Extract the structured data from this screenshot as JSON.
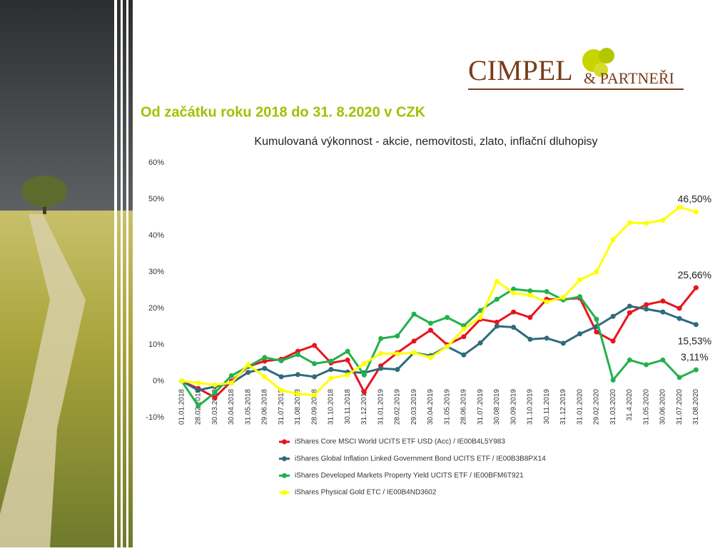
{
  "logo": {
    "name": "CIMPEL",
    "suffix": "& PARTNEŘI"
  },
  "heading": "Od začátku roku 2018 do 31. 8.2020 v CZK",
  "chart_data": {
    "type": "line",
    "title": "Kumulovaná výkonnost - akcie, nemovitosti, zlato, inflační dluhopisy",
    "categories": [
      "01.01.2018",
      "28.02.2018",
      "30.03.2018",
      "30.04.2018",
      "31.05.2018",
      "29.06.2018",
      "31.07.2018",
      "31.08.2018",
      "28.09.2018",
      "31.10.2018",
      "30.11.2018",
      "31.12.2018",
      "31.01.2019",
      "28.02.2019",
      "29.03.2019",
      "30.04.2019",
      "31.05.2019",
      "28.06.2019",
      "31.07.2019",
      "30.08.2019",
      "30.09.2019",
      "31.10.2019",
      "30.11.2019",
      "31.12.2019",
      "31.01.2020",
      "29.02.2020",
      "31.03.2020",
      "31.4.2020",
      "31.05.2020",
      "30.06.2020",
      "31.07.2020",
      "31.08.2020"
    ],
    "ylim": [
      -10,
      60
    ],
    "yticks": [
      {
        "value": -10,
        "label": "-10%"
      },
      {
        "value": 0,
        "label": "0%"
      },
      {
        "value": 10,
        "label": "10%"
      },
      {
        "value": 20,
        "label": "20%"
      },
      {
        "value": 30,
        "label": "30%"
      },
      {
        "value": 40,
        "label": "40%"
      },
      {
        "value": 50,
        "label": "50%"
      },
      {
        "value": 60,
        "label": "60%"
      }
    ],
    "grid": false,
    "series": [
      {
        "name": "iShares Core MSCI World UCITS ETF USD (Acc) / IE00B4L5Y983",
        "color": "#e8141c",
        "values": [
          0,
          -2,
          -4.5,
          0,
          4,
          5.5,
          6,
          8.2,
          9.8,
          5,
          5.8,
          -3,
          4.2,
          7.8,
          11,
          14,
          10,
          12.2,
          17,
          16.2,
          19,
          17.5,
          22.5,
          22.5,
          22.8,
          13.5,
          11,
          18.8,
          21,
          22,
          20,
          25.66
        ],
        "value_labels": [
          null,
          null,
          null,
          null,
          null,
          null,
          null,
          null,
          null,
          null,
          null,
          null,
          null,
          null,
          null,
          null,
          null,
          null,
          null,
          null,
          null,
          null,
          null,
          null,
          null,
          null,
          null,
          null,
          null,
          null,
          null,
          "25,66%"
        ]
      },
      {
        "name": "iShares Global Inflation Linked Government Bond UCITS ETF / IE00B3B8PX14",
        "color": "#2e6b7c",
        "values": [
          0,
          -2.5,
          -1.5,
          -0.5,
          2.4,
          3.5,
          1.2,
          1.8,
          1.2,
          3.2,
          2.5,
          2.3,
          3.5,
          3.2,
          7.8,
          7,
          9.5,
          7.2,
          10.5,
          15.1,
          14.8,
          11.5,
          11.8,
          10.4,
          13,
          15,
          17.8,
          20.6,
          19.8,
          19,
          17.2,
          15.53
        ],
        "value_labels": [
          null,
          null,
          null,
          null,
          null,
          null,
          null,
          null,
          null,
          null,
          null,
          null,
          null,
          null,
          null,
          null,
          null,
          null,
          null,
          null,
          null,
          null,
          null,
          null,
          null,
          null,
          null,
          null,
          null,
          null,
          null,
          "15,53%"
        ]
      },
      {
        "name": "iShares Developed Markets Property Yield UCITS ETF / IE00BFM6T921",
        "color": "#22b14c",
        "values": [
          0,
          -6.8,
          -3.2,
          1.5,
          4,
          6.5,
          5.6,
          7.3,
          4.8,
          5.5,
          8.2,
          1.7,
          11.7,
          12.4,
          18.4,
          15.9,
          17.5,
          15.2,
          19.4,
          22.5,
          25.3,
          24.8,
          24.6,
          22.3,
          23.2,
          17,
          0.3,
          5.8,
          4.5,
          5.8,
          1,
          3.11
        ],
        "value_labels": [
          null,
          null,
          null,
          null,
          null,
          null,
          null,
          null,
          null,
          null,
          null,
          null,
          null,
          null,
          null,
          null,
          null,
          null,
          null,
          null,
          null,
          null,
          null,
          null,
          null,
          null,
          null,
          null,
          null,
          null,
          null,
          "3,11%"
        ]
      },
      {
        "name": "iShares Physical Gold ETC / IE00B4ND3602",
        "color": "#ffff00",
        "values": [
          0,
          -0.5,
          -1,
          -0.5,
          4.5,
          1.2,
          -2.5,
          -3.5,
          -3.8,
          0.8,
          1.7,
          4.8,
          7.6,
          7.5,
          7.8,
          6.5,
          9.5,
          14.3,
          17.5,
          27.4,
          24.2,
          23.6,
          21.8,
          23,
          27.8,
          30,
          38.9,
          43.5,
          43.4,
          44.2,
          47.8,
          46.5
        ],
        "value_labels": [
          null,
          null,
          null,
          null,
          null,
          null,
          null,
          null,
          null,
          null,
          null,
          null,
          null,
          null,
          null,
          null,
          null,
          null,
          null,
          null,
          null,
          null,
          null,
          null,
          null,
          null,
          null,
          null,
          null,
          null,
          null,
          "46,50%"
        ]
      }
    ]
  }
}
